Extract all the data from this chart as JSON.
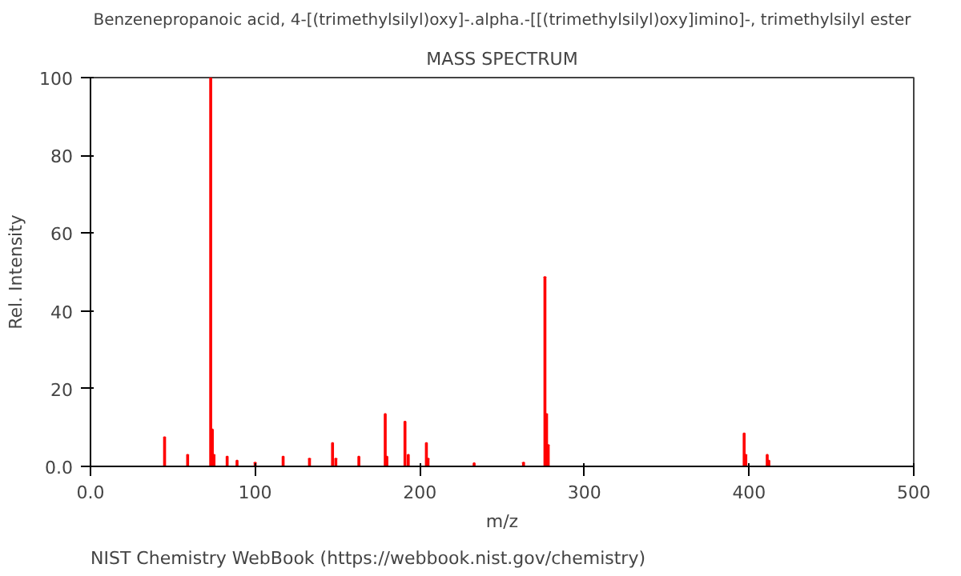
{
  "chart_data": {
    "type": "bar",
    "title": "Benzenepropanoic acid, 4-[(trimethylsilyl)oxy]-.alpha.-[[(trimethylsilyl)oxy]imino]-, trimethylsilyl ester",
    "subtitle": "MASS SPECTRUM",
    "xlabel": "m/z",
    "ylabel": "Rel. Intensity",
    "x": [
      45,
      59,
      73,
      74,
      75,
      83,
      89,
      100,
      117,
      133,
      147,
      149,
      163,
      179,
      180,
      191,
      193,
      204,
      205,
      233,
      263,
      276,
      277,
      278,
      397,
      398,
      411,
      412
    ],
    "series": [
      {
        "color": "#ff0000",
        "values": [
          7.5,
          3,
          100,
          9.5,
          3,
          2.5,
          1.5,
          1,
          2.5,
          2,
          6,
          2,
          2.5,
          13.5,
          2.5,
          11.5,
          3,
          6,
          2,
          0.8,
          1,
          48.7,
          13.5,
          5.5,
          8.5,
          3,
          3,
          1.5
        ]
      }
    ],
    "xlim": [
      0,
      500
    ],
    "ylim": [
      0,
      100
    ],
    "xticks": [
      {
        "value": 0,
        "label": "0.0"
      },
      100,
      200,
      300,
      400,
      500
    ],
    "yticks": [
      {
        "value": 0,
        "label": "0.0"
      },
      20,
      40,
      60,
      80,
      100
    ],
    "annotations": [
      "NIST Chemistry WebBook (https://webbook.nist.gov/chemistry)"
    ]
  }
}
